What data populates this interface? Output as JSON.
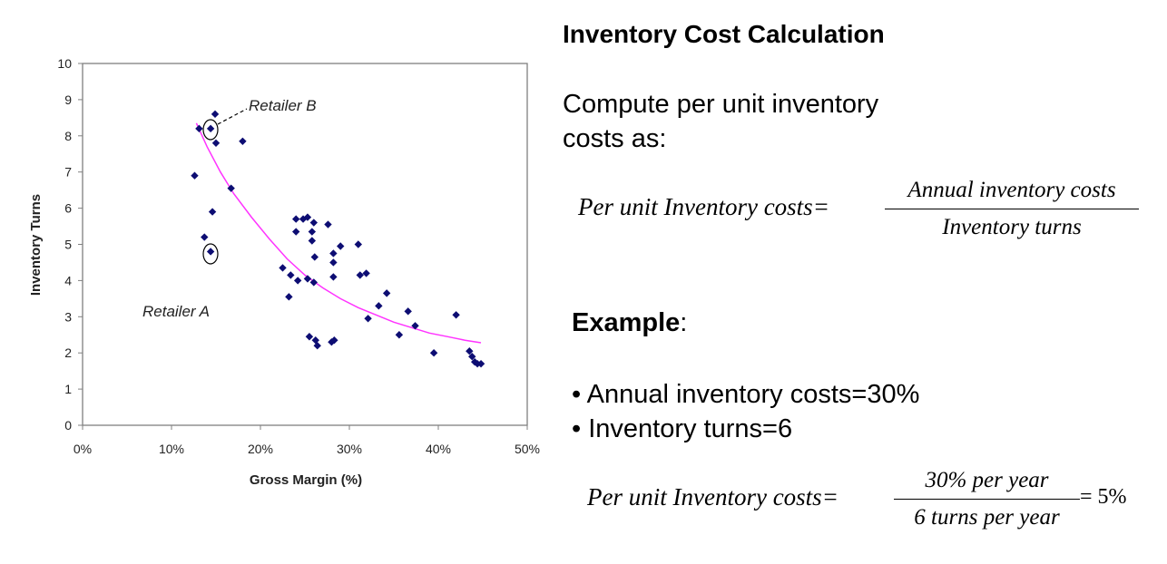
{
  "chart_data": {
    "type": "scatter",
    "xlabel": "Gross Margin (%)",
    "ylabel": "Inventory Turns",
    "xlim": [
      0,
      50
    ],
    "ylim": [
      0,
      10
    ],
    "x_ticks": [
      "0%",
      "10%",
      "20%",
      "30%",
      "40%",
      "50%"
    ],
    "y_ticks": [
      "0",
      "1",
      "2",
      "3",
      "4",
      "5",
      "6",
      "7",
      "8",
      "9",
      "10"
    ],
    "grid": false,
    "marker_color": "#0d0d73",
    "trend_color": "#ff33ff",
    "points": [
      {
        "x": 13.1,
        "y": 8.2
      },
      {
        "x": 14.4,
        "y": 8.2
      },
      {
        "x": 14.9,
        "y": 8.6
      },
      {
        "x": 15.0,
        "y": 7.8
      },
      {
        "x": 18.0,
        "y": 7.85
      },
      {
        "x": 12.6,
        "y": 6.9
      },
      {
        "x": 16.7,
        "y": 6.55
      },
      {
        "x": 14.6,
        "y": 5.9
      },
      {
        "x": 13.7,
        "y": 5.2
      },
      {
        "x": 14.4,
        "y": 4.8
      },
      {
        "x": 24.0,
        "y": 5.7
      },
      {
        "x": 24.8,
        "y": 5.7
      },
      {
        "x": 25.3,
        "y": 5.75
      },
      {
        "x": 26.0,
        "y": 5.6
      },
      {
        "x": 27.6,
        "y": 5.55
      },
      {
        "x": 24.0,
        "y": 5.35
      },
      {
        "x": 25.8,
        "y": 5.35
      },
      {
        "x": 25.8,
        "y": 5.1
      },
      {
        "x": 29.0,
        "y": 4.95
      },
      {
        "x": 31.0,
        "y": 5.0
      },
      {
        "x": 28.2,
        "y": 4.75
      },
      {
        "x": 26.1,
        "y": 4.65
      },
      {
        "x": 28.2,
        "y": 4.5
      },
      {
        "x": 22.5,
        "y": 4.35
      },
      {
        "x": 23.4,
        "y": 4.15
      },
      {
        "x": 24.2,
        "y": 4.0
      },
      {
        "x": 25.3,
        "y": 4.05
      },
      {
        "x": 26.0,
        "y": 3.95
      },
      {
        "x": 28.2,
        "y": 4.1
      },
      {
        "x": 31.2,
        "y": 4.15
      },
      {
        "x": 31.9,
        "y": 4.2
      },
      {
        "x": 34.2,
        "y": 3.65
      },
      {
        "x": 23.2,
        "y": 3.55
      },
      {
        "x": 33.3,
        "y": 3.3
      },
      {
        "x": 32.1,
        "y": 2.95
      },
      {
        "x": 36.6,
        "y": 3.15
      },
      {
        "x": 37.4,
        "y": 2.75
      },
      {
        "x": 35.6,
        "y": 2.5
      },
      {
        "x": 42.0,
        "y": 3.05
      },
      {
        "x": 25.5,
        "y": 2.45
      },
      {
        "x": 26.2,
        "y": 2.35
      },
      {
        "x": 26.4,
        "y": 2.2
      },
      {
        "x": 28.0,
        "y": 2.3
      },
      {
        "x": 28.3,
        "y": 2.35
      },
      {
        "x": 39.5,
        "y": 2.0
      },
      {
        "x": 43.5,
        "y": 2.05
      },
      {
        "x": 43.8,
        "y": 1.9
      },
      {
        "x": 44.1,
        "y": 1.75
      },
      {
        "x": 44.4,
        "y": 1.7
      },
      {
        "x": 44.8,
        "y": 1.7
      }
    ],
    "trendline": [
      {
        "x": 12.8,
        "y": 8.35
      },
      {
        "x": 14.0,
        "y": 7.7
      },
      {
        "x": 15.5,
        "y": 7.0
      },
      {
        "x": 17.0,
        "y": 6.4
      },
      {
        "x": 19.0,
        "y": 5.75
      },
      {
        "x": 21.0,
        "y": 5.15
      },
      {
        "x": 23.0,
        "y": 4.6
      },
      {
        "x": 25.0,
        "y": 4.15
      },
      {
        "x": 27.0,
        "y": 3.8
      },
      {
        "x": 29.0,
        "y": 3.5
      },
      {
        "x": 31.0,
        "y": 3.25
      },
      {
        "x": 33.0,
        "y": 3.05
      },
      {
        "x": 35.0,
        "y": 2.85
      },
      {
        "x": 37.0,
        "y": 2.7
      },
      {
        "x": 39.0,
        "y": 2.55
      },
      {
        "x": 41.0,
        "y": 2.45
      },
      {
        "x": 43.0,
        "y": 2.35
      },
      {
        "x": 44.8,
        "y": 2.28
      }
    ],
    "annotations": [
      {
        "text": "Retailer B",
        "x": 14.4,
        "y": 8.2
      },
      {
        "text": "Retailer A",
        "x": 14.4,
        "y": 4.8
      }
    ]
  },
  "text": {
    "title": "Inventory Cost Calculation",
    "intro": "Compute per unit inventory costs as:",
    "formula1_lhs": "Per unit Inventory costs=",
    "formula1_num": "Annual inventory costs",
    "formula1_den": "Inventory turns",
    "example_label": "Example",
    "example_colon": ":",
    "bullet1": "• Annual inventory costs=30%",
    "bullet2": "• Inventory turns=6",
    "formula2_lhs": "Per unit Inventory costs=",
    "formula2_num": "30% per year",
    "formula2_den": "6 turns  per year",
    "formula2_rhs": "= 5%"
  }
}
